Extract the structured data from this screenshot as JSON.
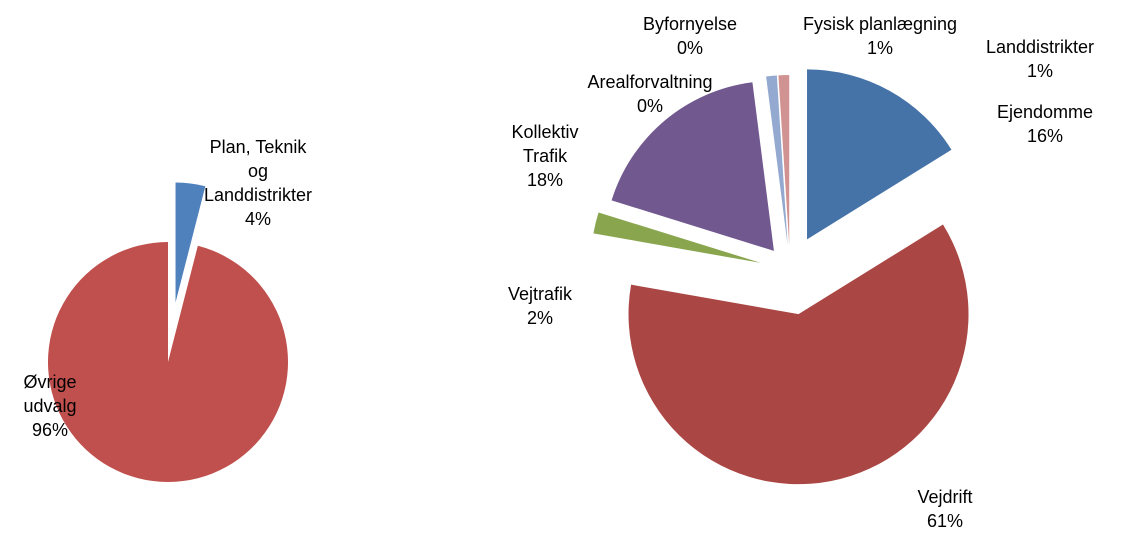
{
  "chart_data": [
    {
      "type": "pie",
      "categories": [
        "Plan, Teknik og Landdistrikter",
        "Øvrige udvalg"
      ],
      "values": [
        4,
        96
      ],
      "value_labels": [
        "4%",
        "96%"
      ],
      "colors": [
        "#4f81bd",
        "#c0504d"
      ]
    },
    {
      "type": "pie",
      "categories": [
        "Ejendomme",
        "Vejdrift",
        "Vejtrafik",
        "Kollektiv Trafik",
        "Arealforvaltning",
        "Byfornyelse",
        "Fysisk planlægning",
        "Landdistrikter"
      ],
      "values": [
        16,
        61,
        2,
        18,
        0,
        0,
        1,
        1
      ],
      "value_labels": [
        "16%",
        "61%",
        "2%",
        "18%",
        "0%",
        "0%",
        "1%",
        "1%"
      ],
      "colors": [
        "#4572a7",
        "#aa4643",
        "#89a54e",
        "#71588f",
        "#4198af",
        "#db843d",
        "#93a9cf",
        "#d19392"
      ]
    }
  ]
}
